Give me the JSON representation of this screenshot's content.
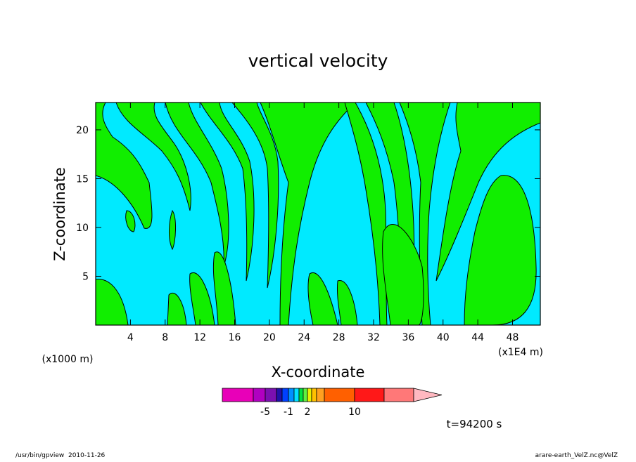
{
  "chart_data": {
    "type": "contour",
    "title": "vertical velocity",
    "x_label": "X-coordinate",
    "y_label": "Z-coordinate",
    "x_unit_left": "(x1000 m)",
    "x_unit_right": "(x1E4 m)",
    "xlim": [
      0,
      51.2
    ],
    "xticks": [
      4,
      8,
      12,
      16,
      20,
      24,
      28,
      32,
      36,
      40,
      44,
      48
    ],
    "ylim": [
      0,
      22.8
    ],
    "yticks": [
      5,
      10,
      15,
      20
    ],
    "colorbar": {
      "colors": [
        "#e800b8",
        "#b000c0",
        "#7a10b0",
        "#2010a8",
        "#0040ff",
        "#0090ff",
        "#00e0ff",
        "#00e040",
        "#60f040",
        "#e8f000",
        "#ffc000",
        "#ffa020",
        "#ff6000",
        "#ff1818",
        "#ff7878",
        "#ffb8c0"
      ],
      "ticks": [
        -5,
        -1,
        2,
        10
      ]
    },
    "annotation": "t=94200 s",
    "footer_left": "/usr/bin/gpview  2010-11-26",
    "footer_right": "arare-earth_VelZ.nc@VelZ"
  }
}
